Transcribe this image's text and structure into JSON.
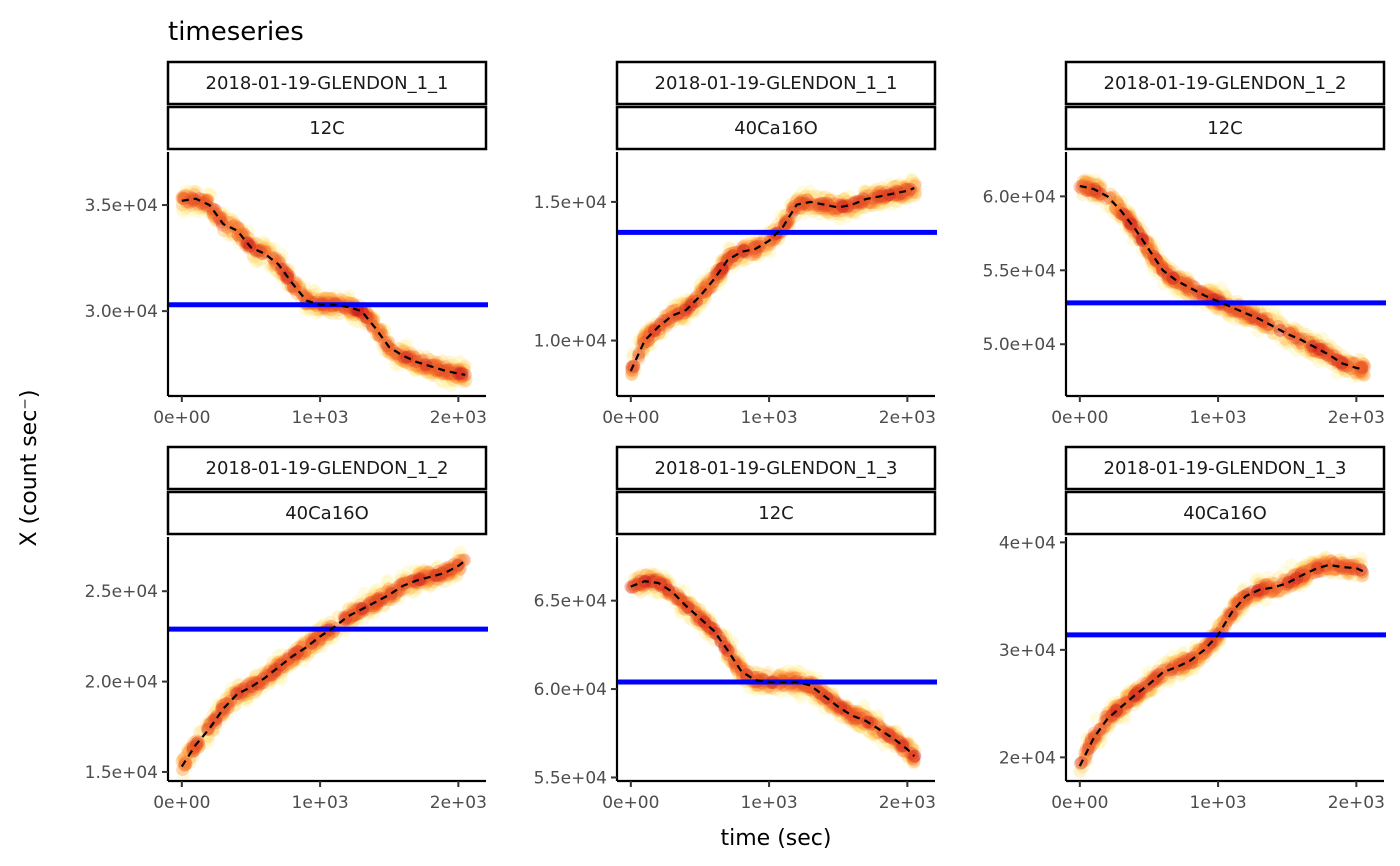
{
  "chart_data": {
    "type": "scatter",
    "title": "timeseries",
    "xlabel": "time (sec)",
    "ylabel": "X (count sec⁻)",
    "colors": {
      "mean_line": "#0000ff",
      "trend_line": "#000000",
      "low_density": "#ffec8b",
      "mid_density": "#fd8d3c",
      "high_density": "#c8141e"
    },
    "grid": false,
    "x_ticks": [
      "0e+00",
      "1e+03",
      "2e+03"
    ],
    "x_tick_values": [
      0,
      1000,
      2000
    ],
    "xlim": [
      -100,
      2200
    ],
    "panels": [
      {
        "strip": [
          "2018-01-19-GLENDON_1_1",
          "12C"
        ],
        "ylim": [
          26000,
          37500
        ],
        "y_ticks": [
          "3.0e+04",
          "3.5e+04"
        ],
        "y_tick_values": [
          30000,
          35000
        ],
        "mean": 30300,
        "x": [
          0,
          100,
          200,
          300,
          400,
          500,
          600,
          700,
          800,
          900,
          1000,
          1100,
          1200,
          1300,
          1400,
          1500,
          1600,
          1700,
          1800,
          1900,
          2000,
          2050
        ],
        "y": [
          35200,
          35300,
          35000,
          34100,
          33800,
          33000,
          32700,
          32200,
          31300,
          30500,
          30300,
          30300,
          30200,
          30000,
          29200,
          28300,
          27900,
          27600,
          27400,
          27200,
          27050,
          27000
        ]
      },
      {
        "strip": [
          "2018-01-19-GLENDON_1_1",
          "40Ca16O"
        ],
        "ylim": [
          8000,
          16800
        ],
        "y_ticks": [
          "1.0e+04",
          "1.5e+04"
        ],
        "y_tick_values": [
          10000,
          15000
        ],
        "mean": 13900,
        "x": [
          0,
          100,
          200,
          300,
          400,
          500,
          600,
          700,
          800,
          900,
          1000,
          1100,
          1200,
          1300,
          1400,
          1500,
          1600,
          1700,
          1800,
          1900,
          2000,
          2050
        ],
        "y": [
          8900,
          10000,
          10500,
          10900,
          11100,
          11600,
          12200,
          12900,
          13200,
          13300,
          13600,
          14100,
          14900,
          15000,
          14900,
          14800,
          14900,
          15100,
          15200,
          15300,
          15400,
          15500
        ]
      },
      {
        "strip": [
          "2018-01-19-GLENDON_1_2",
          "12C"
        ],
        "ylim": [
          46500,
          63000
        ],
        "y_ticks": [
          "5.0e+04",
          "5.5e+04",
          "6.0e+04"
        ],
        "y_tick_values": [
          50000,
          55000,
          60000
        ],
        "mean": 52800,
        "x": [
          0,
          100,
          200,
          300,
          400,
          500,
          600,
          700,
          800,
          900,
          1000,
          1100,
          1200,
          1300,
          1400,
          1500,
          1600,
          1700,
          1800,
          1900,
          2000,
          2050
        ],
        "y": [
          60700,
          60500,
          60000,
          59000,
          57800,
          56400,
          55000,
          54300,
          53800,
          53300,
          52900,
          52500,
          52100,
          51700,
          51200,
          50700,
          50300,
          49800,
          49300,
          48700,
          48400,
          48300
        ]
      },
      {
        "strip": [
          "2018-01-19-GLENDON_1_2",
          "40Ca16O"
        ],
        "ylim": [
          14500,
          28000
        ],
        "y_ticks": [
          "1.5e+04",
          "2.0e+04",
          "2.5e+04"
        ],
        "y_tick_values": [
          15000,
          20000,
          25000
        ],
        "mean": 22900,
        "x": [
          0,
          100,
          200,
          300,
          400,
          500,
          600,
          700,
          800,
          900,
          1000,
          1100,
          1200,
          1300,
          1400,
          1500,
          1600,
          1700,
          1800,
          1900,
          2000,
          2050
        ],
        "y": [
          15300,
          16500,
          17400,
          18500,
          19300,
          19700,
          20200,
          20800,
          21400,
          21900,
          22500,
          23000,
          23600,
          24000,
          24400,
          24800,
          25300,
          25600,
          25800,
          26000,
          26400,
          26700
        ]
      },
      {
        "strip": [
          "2018-01-19-GLENDON_1_3",
          "12C"
        ],
        "ylim": [
          54800,
          68600
        ],
        "y_ticks": [
          "5.5e+04",
          "6.0e+04",
          "6.5e+04"
        ],
        "y_tick_values": [
          55000,
          60000,
          65000
        ],
        "mean": 60400,
        "x": [
          0,
          100,
          200,
          300,
          400,
          500,
          600,
          700,
          800,
          900,
          1000,
          1100,
          1200,
          1300,
          1400,
          1500,
          1600,
          1700,
          1800,
          1900,
          2000,
          2050
        ],
        "y": [
          65800,
          66100,
          66000,
          65500,
          64700,
          64000,
          63300,
          62200,
          61000,
          60500,
          60400,
          60400,
          60400,
          60200,
          59600,
          59000,
          58500,
          58200,
          57700,
          57200,
          56600,
          56200
        ]
      },
      {
        "strip": [
          "2018-01-19-GLENDON_1_3",
          "40Ca16O"
        ],
        "ylim": [
          17800,
          40500
        ],
        "y_ticks": [
          "2e+04",
          "3e+04",
          "4e+04"
        ],
        "y_tick_values": [
          20000,
          30000,
          40000
        ],
        "mean": 31400,
        "x": [
          0,
          100,
          200,
          300,
          400,
          500,
          600,
          700,
          800,
          900,
          1000,
          1100,
          1200,
          1300,
          1400,
          1500,
          1600,
          1700,
          1800,
          1900,
          2000,
          2050
        ],
        "y": [
          19200,
          21800,
          23600,
          24700,
          25800,
          26800,
          27900,
          28400,
          29000,
          30000,
          31400,
          33500,
          35000,
          35600,
          35800,
          36200,
          36900,
          37500,
          37900,
          37700,
          37600,
          37300
        ]
      }
    ]
  }
}
